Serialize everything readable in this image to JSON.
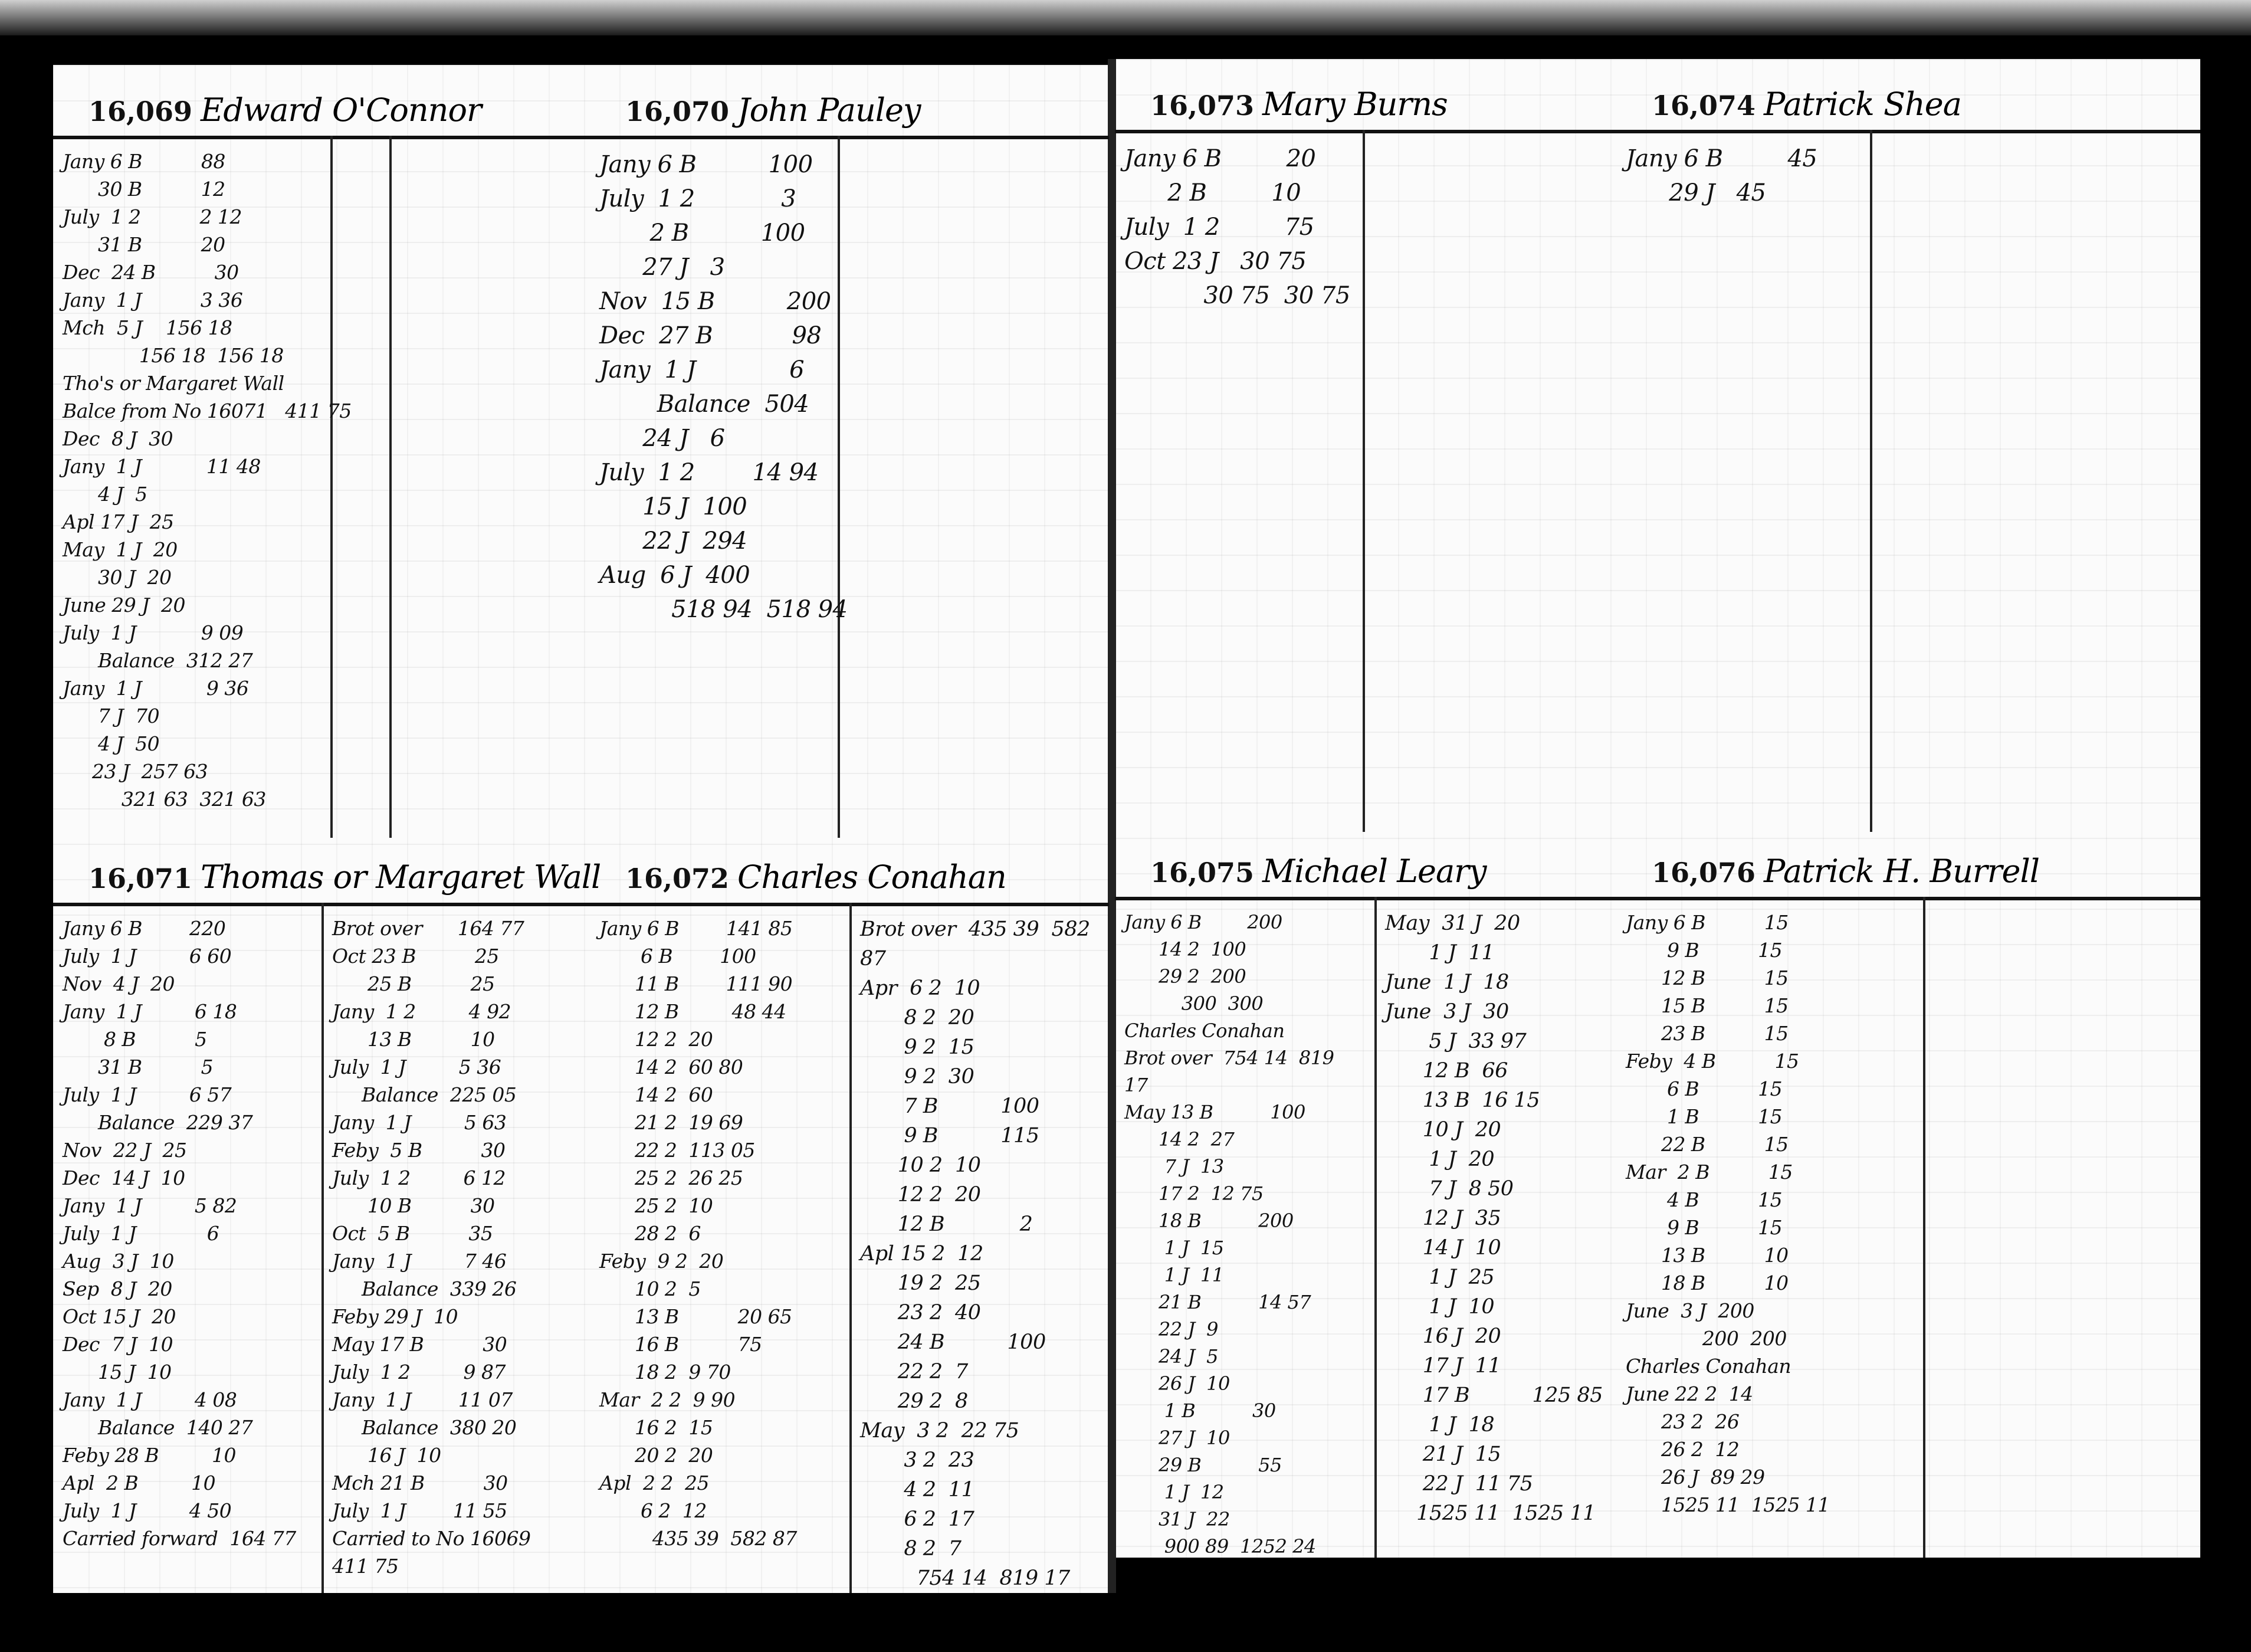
{
  "accounts": [
    {
      "number": "16,069",
      "name": "Edward O'Connor",
      "columns": [
        [
          "Jany 6 B          88",
          "      30 B          12",
          "July  1 2          2 12",
          "      31 B          20",
          "Dec  24 B          30",
          "Jany  1 J          3 36",
          "Mch  5 J    156 18",
          "             156 18  156 18",
          "Tho's or Margaret Wall",
          "Balce from No 16071   411 75",
          "Dec  8 J  30",
          "Jany  1 J           11 48",
          "      4 J  5",
          "Apl 17 J  25",
          "May  1 J  20",
          "      30 J  20",
          "June 29 J  20",
          "July  1 J           9 09",
          "      Balance  312 27",
          "Jany  1 J           9 36",
          "      7 J  70",
          "      4 J  50",
          "     23 J  257 63",
          "          321 63  321 63"
        ]
      ]
    },
    {
      "number": "16,070",
      "name": "John Pauley",
      "columns": [
        [
          "Jany 6 B          100",
          "July  1 2            3",
          "       2 B          100",
          "      27 J   3",
          "Nov  15 B          200",
          "Dec  27 B           98",
          "Jany  1 J             6",
          "        Balance  504",
          "      24 J   6",
          "July  1 2        14 94",
          "      15 J  100",
          "      22 J  294",
          "Aug  6 J  400",
          "          518 94  518 94"
        ]
      ]
    },
    {
      "number": "16,073",
      "name": "Mary Burns",
      "columns": [
        [
          "Jany 6 B         20",
          "      2 B         10",
          "July  1 2         75",
          "Oct 23 J   30 75",
          "           30 75  30 75"
        ]
      ]
    },
    {
      "number": "16,074",
      "name": "Patrick Shea",
      "columns": [
        [
          "Jany 6 B         45",
          "      29 J   45"
        ]
      ]
    },
    {
      "number": "16,071",
      "name": "Thomas or Margaret Wall",
      "columns": [
        [
          "Jany 6 B        220",
          "July  1 J         6 60",
          "Nov  4 J  20",
          "Jany  1 J         6 18",
          "       8 B          5",
          "      31 B          5",
          "July  1 J         6 57",
          "      Balance  229 37",
          "Nov  22 J  25",
          "Dec  14 J  10",
          "Jany  1 J         5 82",
          "July  1 J            6",
          "Aug  3 J  10",
          "Sep  8 J  20",
          "Oct 15 J  20",
          "Dec  7 J  10",
          "      15 J  10",
          "Jany  1 J         4 08",
          "      Balance  140 27",
          "Feby 28 B         10",
          "Apl  2 B         10",
          "July  1 J         4 50",
          "Carried forward  164 77"
        ],
        [
          "Brot over      164 77",
          "Oct 23 B          25",
          "      25 B          25",
          "Jany  1 2         4 92",
          "      13 B          10",
          "July  1 J         5 36",
          "     Balance  225 05",
          "Jany  1 J         5 63",
          "Feby  5 B          30",
          "July  1 2         6 12",
          "      10 B          30",
          "Oct  5 B          35",
          "Jany  1 J         7 46",
          "     Balance  339 26",
          "Feby 29 J  10",
          "May 17 B          30",
          "July  1 2         9 87",
          "Jany  1 J        11 07",
          "     Balance  380 20",
          "      16 J  10",
          "Mch 21 B          30",
          "July  1 J        11 55",
          "Carried to No 16069  411 75"
        ]
      ]
    },
    {
      "number": "16,072",
      "name": "Charles Conahan",
      "columns": [
        [
          "Jany 6 B        141 85",
          "       6 B        100",
          "      11 B        111 90",
          "      12 B         48 44",
          "      12 2  20",
          "      14 2  60 80",
          "      14 2  60",
          "      21 2  19 69",
          "      22 2  113 05",
          "      25 2  26 25",
          "      25 2  10",
          "      28 2  6",
          "Feby  9 2  20",
          "      10 2  5",
          "      13 B          20 65",
          "      16 B          75",
          "      18 2  9 70",
          "Mar  2 2  9 90",
          "      16 2  15",
          "      20 2  20",
          "Apl  2 2  25",
          "       6 2  12",
          "         435 39  582 87"
        ],
        [
          "Brot over  435 39  582 87",
          "Apr  6 2  10",
          "       8 2  20",
          "       9 2  15",
          "       9 2  30",
          "       7 B          100",
          "       9 B          115",
          "      10 2  10",
          "      12 2  20",
          "      12 B            2",
          "Apl 15 2  12",
          "      19 2  25",
          "      23 2  40",
          "      24 B          100",
          "      22 2  7",
          "      29 2  8",
          "May  3 2  22 75",
          "       3 2  23",
          "       4 2  11",
          "       6 2  17",
          "       8 2  7",
          "         754 14  819 17"
        ]
      ]
    },
    {
      "number": "16,075",
      "name": "Michael Leary",
      "columns": [
        [
          "Jany 6 B        200",
          "      14 2  100",
          "      29 2  200",
          "          300  300",
          "Charles Conahan",
          "Brot over  754 14  819 17",
          "May 13 B          100",
          "      14 2  27",
          "       7 J  13",
          "      17 2  12 75",
          "      18 B          200",
          "       1 J  15",
          "       1 J  11",
          "      21 B          14 57",
          "      22 J  9",
          "      24 J  5",
          "      26 J  10",
          "       1 B          30",
          "      27 J  10",
          "      29 B          55",
          "       1 J  12",
          "      31 J  22",
          "       900 89  1252 24"
        ],
        [
          "May  31 J  20",
          "       1 J  11",
          "June  1 J  18",
          "June  3 J  30",
          "       5 J  33 97",
          "      12 B  66",
          "      13 B  16 15",
          "      10 J  20",
          "       1 J  20",
          "       7 J  8 50",
          "      12 J  35",
          "      14 J  10",
          "       1 J  25",
          "       1 J  10",
          "      16 J  20",
          "      17 J  11",
          "      17 B          125 85",
          "       1 J  18",
          "      21 J  15",
          "      22 J  11 75",
          "     1525 11  1525 11"
        ]
      ]
    },
    {
      "number": "16,076",
      "name": "Patrick H. Burrell",
      "columns": [
        [
          "Jany 6 B          15",
          "       9 B          15",
          "      12 B          15",
          "      15 B          15",
          "      23 B          15",
          "Feby  4 B          15",
          "       6 B          15",
          "       1 B          15",
          "      22 B          15",
          "Mar  2 B          15",
          "       4 B          15",
          "       9 B          15",
          "      13 B          10",
          "      18 B          10",
          "June  3 J  200",
          "             200  200",
          "Charles Conahan",
          "June 22 2  14",
          "      23 2  26",
          "      26 2  12",
          "      26 J  89 29",
          "      1525 11  1525 11"
        ]
      ]
    }
  ]
}
